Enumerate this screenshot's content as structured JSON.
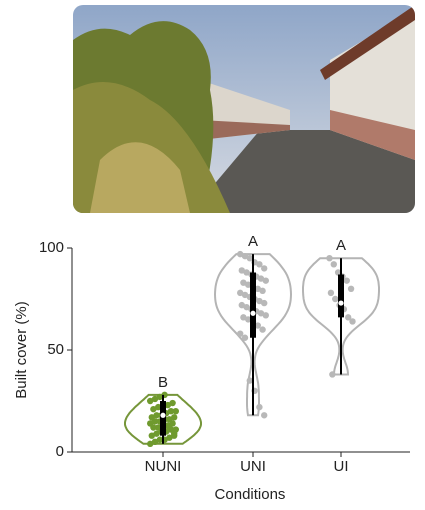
{
  "chart_data": {
    "type": "violin",
    "x_label": "Conditions",
    "y_label": "Built cover (%)",
    "categories": [
      "NUNI",
      "UNI",
      "UI"
    ],
    "letters": [
      "B",
      "A",
      "A"
    ],
    "colors": [
      "#76963a",
      "#b4b4b4",
      "#b4b4b4"
    ],
    "point_colors": [
      "#6f9a2e",
      "#b8b8b8",
      "#b8b8b8"
    ],
    "points": [
      [
        4,
        5,
        6,
        6,
        7,
        8,
        8,
        9,
        10,
        10,
        11,
        11,
        12,
        12,
        13,
        13,
        14,
        14,
        15,
        15,
        16,
        16,
        17,
        17,
        18,
        18,
        19,
        20,
        20,
        21,
        22,
        22,
        23,
        24,
        25,
        26,
        27,
        28,
        12,
        9
      ],
      [
        97,
        96,
        95,
        93,
        92,
        90,
        89,
        88,
        87,
        86,
        85,
        84,
        83,
        82,
        81,
        80,
        79,
        78,
        77,
        76,
        75,
        74,
        73,
        72,
        71,
        70,
        69,
        68,
        67,
        66,
        65,
        64,
        62,
        60,
        58,
        56,
        35,
        30,
        22,
        18
      ],
      [
        95,
        92,
        88,
        86,
        84,
        80,
        78,
        75,
        72,
        70,
        66,
        64,
        38
      ]
    ],
    "quartiles": [
      [
        8,
        18,
        25
      ],
      [
        56,
        68,
        88
      ],
      [
        66,
        73,
        87
      ]
    ],
    "ylim": [
      0,
      100
    ],
    "yticks": [
      0,
      50,
      100
    ]
  }
}
